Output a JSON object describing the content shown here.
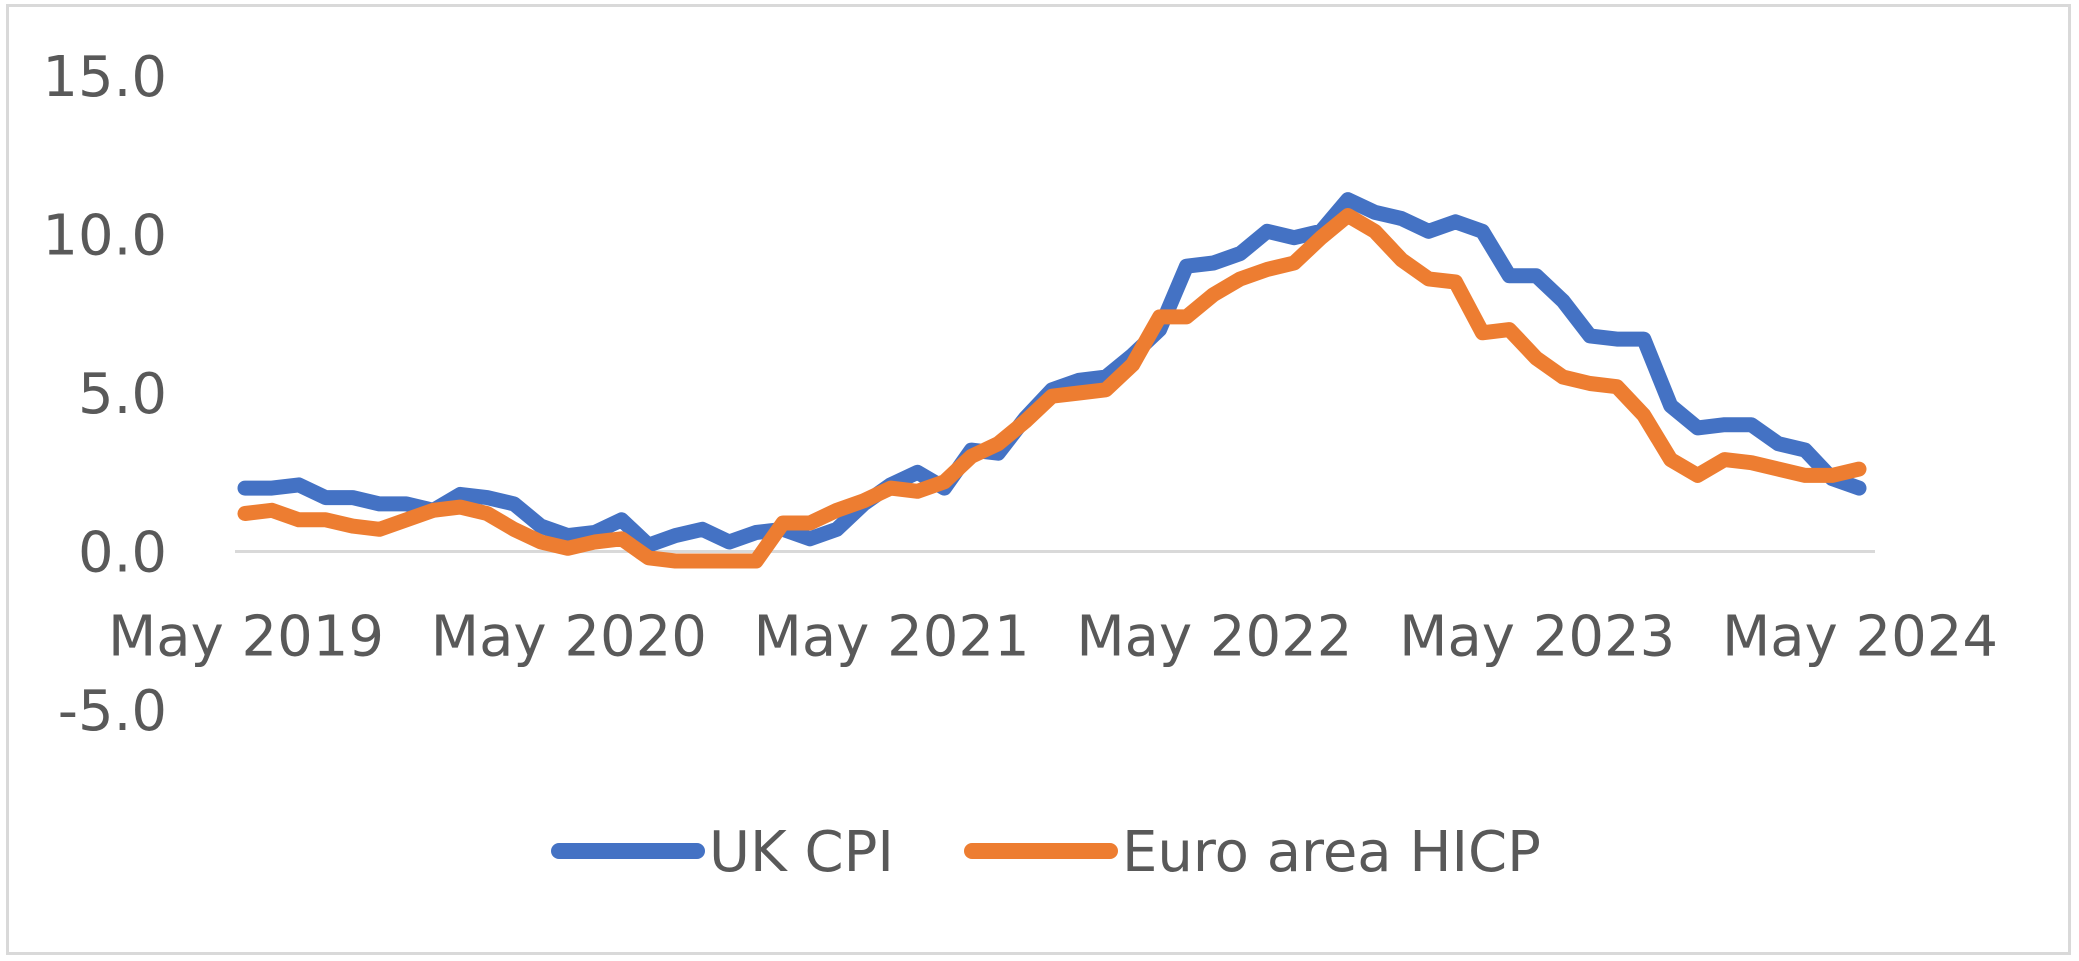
{
  "chart_data": {
    "type": "line",
    "title": "",
    "xlabel": "",
    "ylabel": "",
    "ylim": [
      -5,
      15
    ],
    "yticks": [
      "15.0",
      "10.0",
      "5.0",
      "0.0",
      "-5.0"
    ],
    "ytick_values": [
      15,
      10,
      5,
      0,
      -5
    ],
    "xticks": [
      "May 2019",
      "May 2020",
      "May 2021",
      "May 2022",
      "May 2023",
      "May 2024"
    ],
    "xtick_index": [
      0,
      12,
      24,
      36,
      48,
      60
    ],
    "x_start": "May 2019",
    "x_end": "Jun 2024",
    "grid": false,
    "legend_position": "bottom",
    "series": [
      {
        "name": "UK CPI",
        "color": "#4472c4",
        "values": [
          2.0,
          2.0,
          2.1,
          1.7,
          1.7,
          1.5,
          1.5,
          1.3,
          1.8,
          1.7,
          1.5,
          0.8,
          0.5,
          0.6,
          1.0,
          0.2,
          0.5,
          0.7,
          0.3,
          0.6,
          0.7,
          0.4,
          0.7,
          1.5,
          2.1,
          2.5,
          2.0,
          3.2,
          3.1,
          4.2,
          5.1,
          5.4,
          5.5,
          6.2,
          7.0,
          9.0,
          9.1,
          9.4,
          10.1,
          9.9,
          10.1,
          11.1,
          10.7,
          10.5,
          10.1,
          10.4,
          10.1,
          8.7,
          8.7,
          7.9,
          6.8,
          6.7,
          6.7,
          4.6,
          3.9,
          4.0,
          4.0,
          3.4,
          3.2,
          2.3,
          2.0
        ]
      },
      {
        "name": "Euro area HICP",
        "color": "#ed7d31",
        "values": [
          1.2,
          1.3,
          1.0,
          1.0,
          0.8,
          0.7,
          1.0,
          1.3,
          1.4,
          1.2,
          0.7,
          0.3,
          0.1,
          0.3,
          0.4,
          -0.2,
          -0.3,
          -0.3,
          -0.3,
          -0.3,
          0.9,
          0.9,
          1.3,
          1.6,
          2.0,
          1.9,
          2.2,
          3.0,
          3.4,
          4.1,
          4.9,
          5.0,
          5.1,
          5.9,
          7.4,
          7.4,
          8.1,
          8.6,
          8.9,
          9.1,
          9.9,
          10.6,
          10.1,
          9.2,
          8.6,
          8.5,
          6.9,
          7.0,
          6.1,
          5.5,
          5.3,
          5.2,
          4.3,
          2.9,
          2.4,
          2.9,
          2.8,
          2.6,
          2.4,
          2.4,
          2.6
        ]
      }
    ]
  }
}
